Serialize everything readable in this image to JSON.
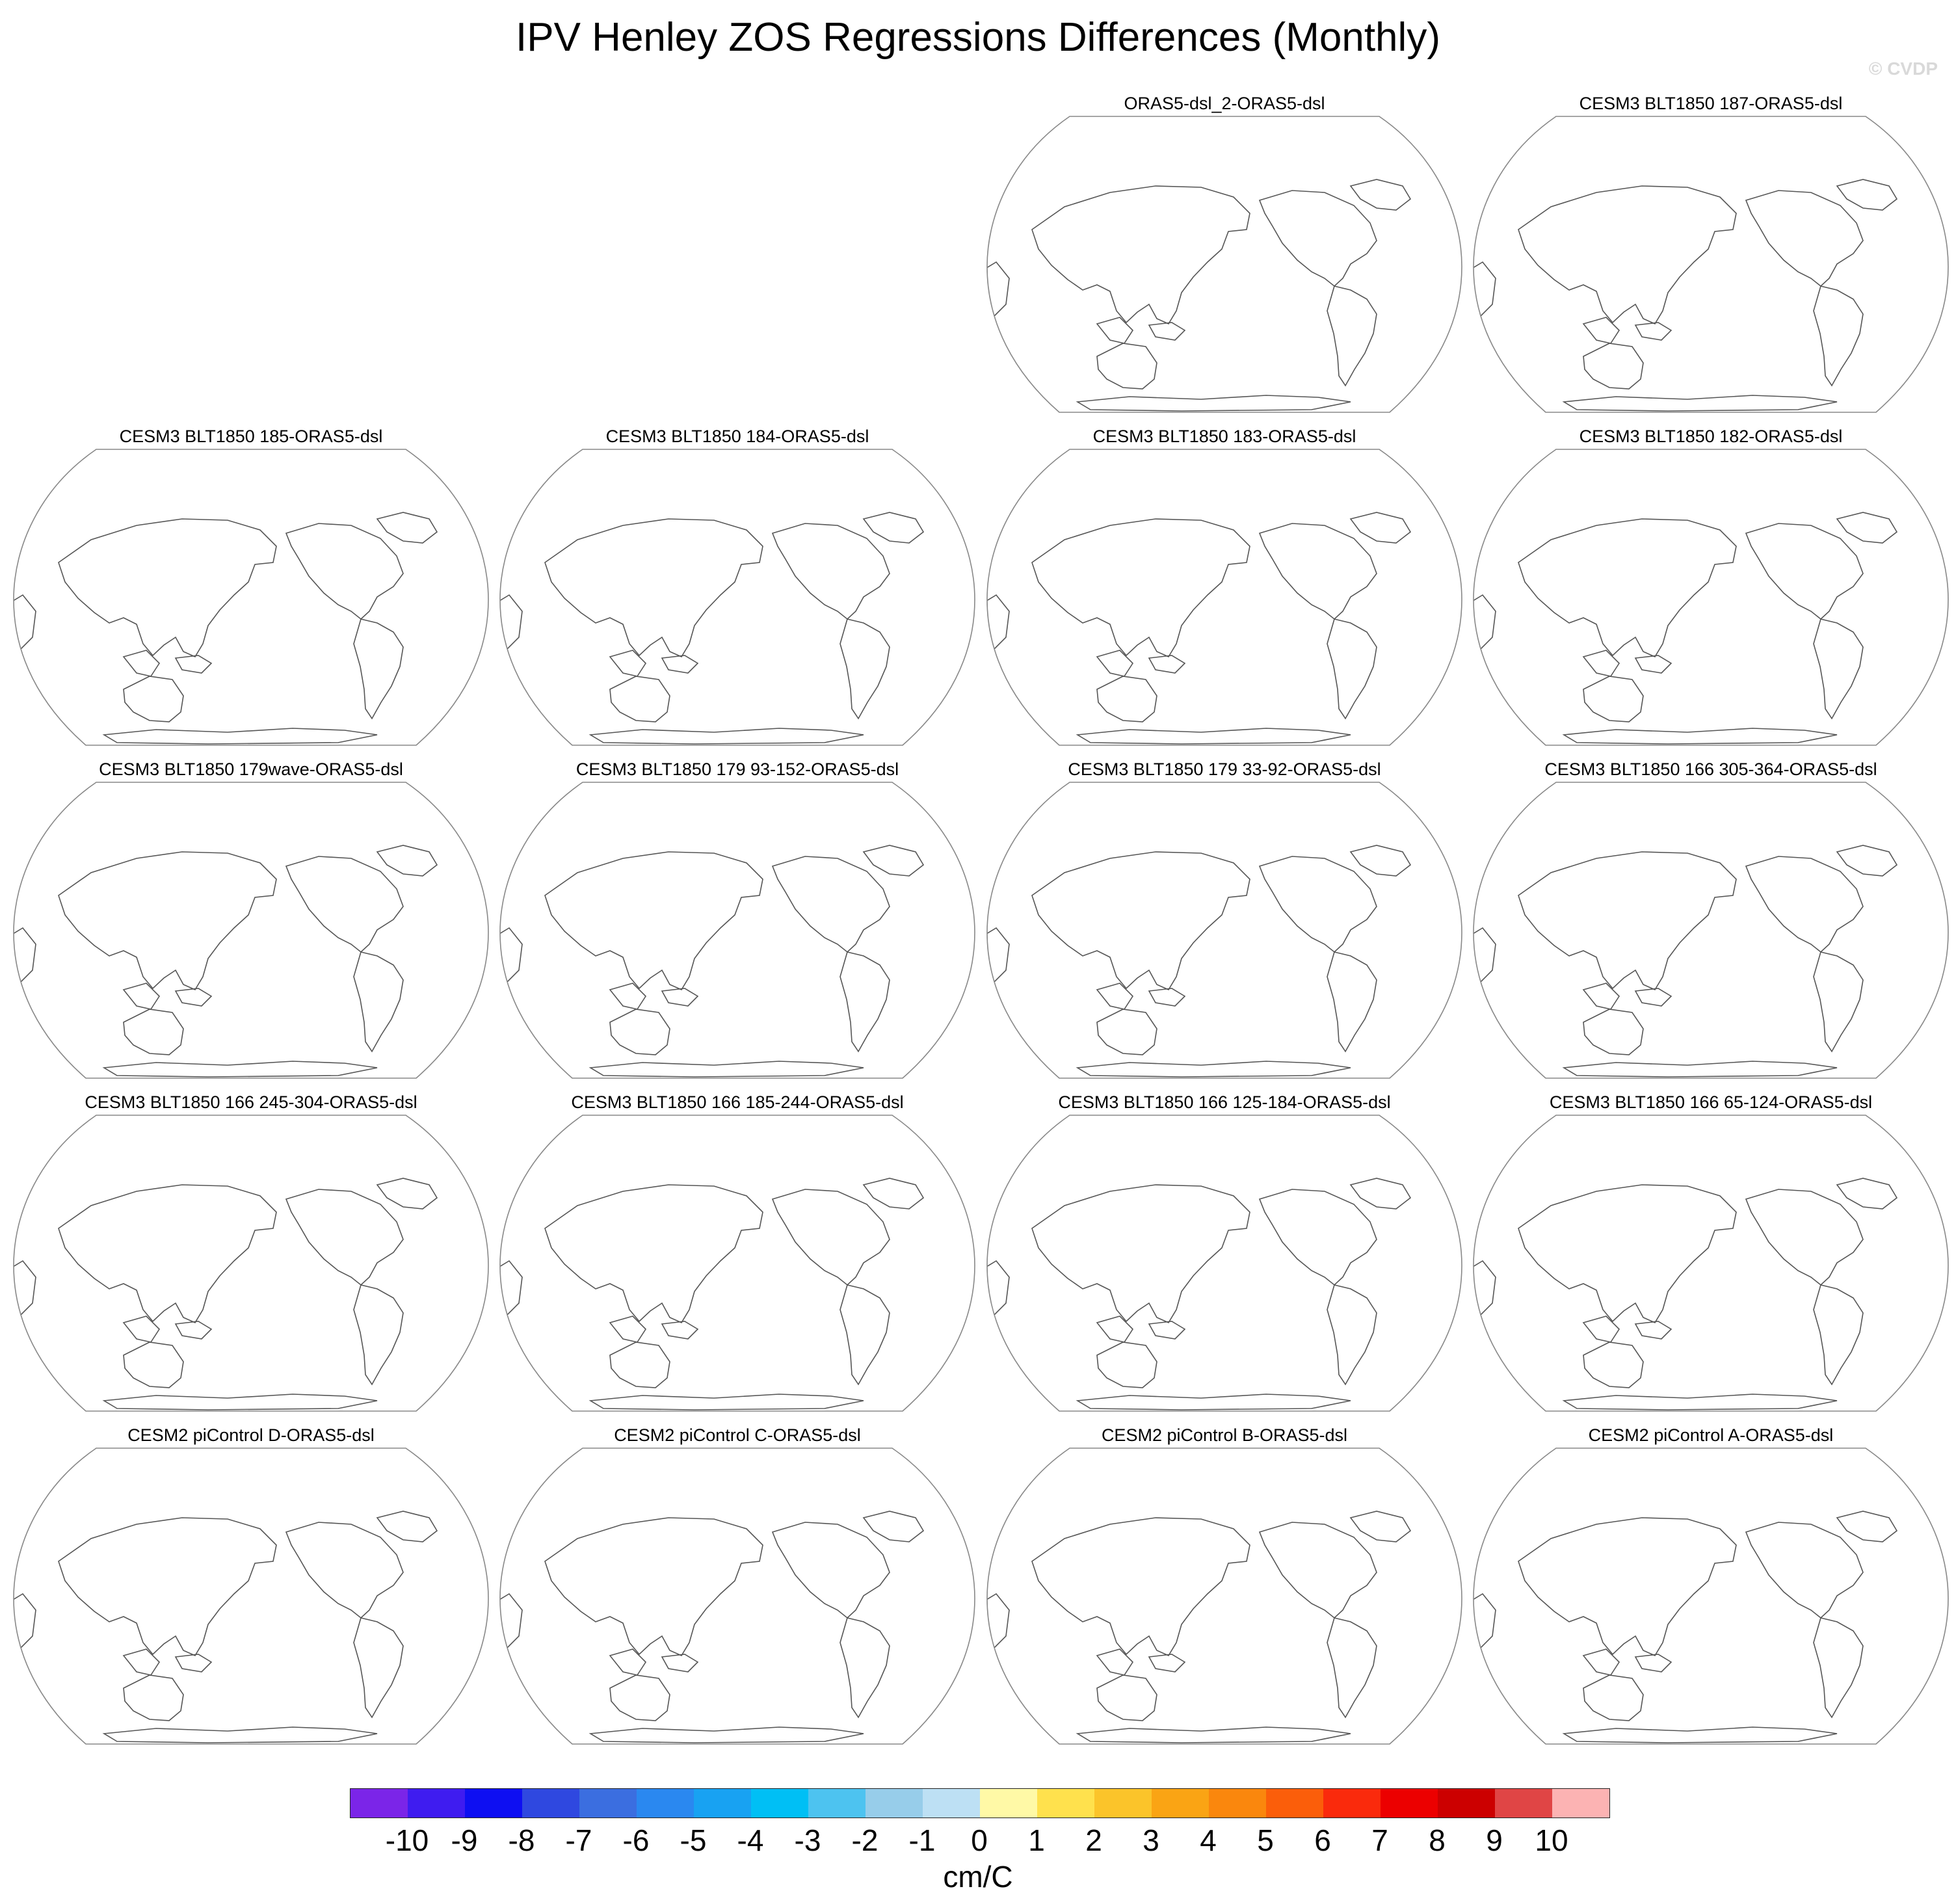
{
  "title": "IPV Henley ZOS Regressions Differences (Monthly)",
  "watermark": "© CVDP",
  "panels": [
    "ORAS5-dsl_2-ORAS5-dsl",
    "CESM3 BLT1850 187-ORAS5-dsl",
    "CESM3 BLT1850 185-ORAS5-dsl",
    "CESM3 BLT1850 184-ORAS5-dsl",
    "CESM3 BLT1850 183-ORAS5-dsl",
    "CESM3 BLT1850 182-ORAS5-dsl",
    "CESM3 BLT1850 179wave-ORAS5-dsl",
    "CESM3 BLT1850 179 93-152-ORAS5-dsl",
    "CESM3 BLT1850 179 33-92-ORAS5-dsl",
    "CESM3 BLT1850 166 305-364-ORAS5-dsl",
    "CESM3 BLT1850 166 245-304-ORAS5-dsl",
    "CESM3 BLT1850 166 185-244-ORAS5-dsl",
    "CESM3 BLT1850 166 125-184-ORAS5-dsl",
    "CESM3 BLT1850 166 65-124-ORAS5-dsl",
    "CESM2 piControl D-ORAS5-dsl",
    "CESM2 piControl C-ORAS5-dsl",
    "CESM2 piControl B-ORAS5-dsl",
    "CESM2 piControl A-ORAS5-dsl"
  ],
  "colorbar": {
    "colors": [
      "#7b25e8",
      "#3f1cf0",
      "#0e0ff2",
      "#2f48e0",
      "#3b6ee0",
      "#2a88f0",
      "#18a2f2",
      "#00bff5",
      "#4dc3f0",
      "#97cdea",
      "#bde0f4",
      "#fff9a6",
      "#ffe14d",
      "#fbc42a",
      "#faa414",
      "#fa870d",
      "#fb5e0a",
      "#fa2a0c",
      "#ec0000",
      "#cc0000",
      "#e04545",
      "#fcb3b3"
    ],
    "ticks": [
      "-10",
      "-9",
      "-8",
      "-7",
      "-6",
      "-5",
      "-4",
      "-3",
      "-2",
      "-1",
      "0",
      "1",
      "2",
      "3",
      "4",
      "5",
      "6",
      "7",
      "8",
      "9",
      "10"
    ],
    "units": "cm/C"
  }
}
